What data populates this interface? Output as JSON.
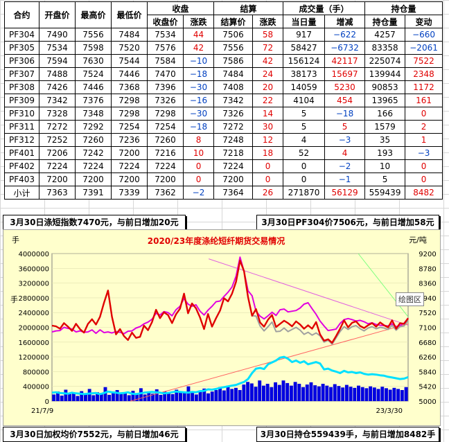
{
  "table": {
    "headers_top": [
      "合约",
      "开盘价",
      "最高价",
      "最低价",
      "收盘",
      "结算",
      "成交量（手）",
      "持仓量"
    ],
    "headers_sub": [
      "收盘价",
      "涨跌",
      "结算价",
      "涨跌",
      "当日量",
      "增减",
      "持仓量",
      "变动"
    ],
    "rows": [
      [
        "PF304",
        "7490",
        "7556",
        "7484",
        "7534",
        "44",
        "7506",
        "58",
        "917",
        "−622",
        "4257",
        "−660"
      ],
      [
        "PF305",
        "7534",
        "7598",
        "7520",
        "7576",
        "42",
        "7556",
        "72",
        "58427",
        "−6732",
        "83358",
        "−2061"
      ],
      [
        "PF306",
        "7594",
        "7630",
        "7544",
        "7584",
        "−10",
        "7586",
        "42",
        "156124",
        "42117",
        "225074",
        "7522"
      ],
      [
        "PF307",
        "7488",
        "7524",
        "7446",
        "7470",
        "−18",
        "7484",
        "24",
        "38173",
        "15697",
        "139944",
        "2348"
      ],
      [
        "PF308",
        "7426",
        "7446",
        "7368",
        "7396",
        "−30",
        "7408",
        "20",
        "14059",
        "5230",
        "90853",
        "1172"
      ],
      [
        "PF309",
        "7342",
        "7376",
        "7298",
        "7326",
        "−16",
        "7342",
        "22",
        "4104",
        "454",
        "13965",
        "161"
      ],
      [
        "PF310",
        "7328",
        "7348",
        "7298",
        "7298",
        "−30",
        "7326",
        "14",
        "5",
        "−18",
        "166",
        "0"
      ],
      [
        "PF311",
        "7272",
        "7292",
        "7254",
        "7254",
        "−18",
        "7272",
        "30",
        "5",
        "5",
        "1579",
        "2"
      ],
      [
        "PF312",
        "7252",
        "7260",
        "7236",
        "7260",
        "8",
        "7248",
        "12",
        "4",
        "−3",
        "35",
        "1"
      ],
      [
        "PF401",
        "7206",
        "7242",
        "7200",
        "7216",
        "10",
        "7218",
        "18",
        "52",
        "4",
        "193",
        "−3"
      ],
      [
        "PF402",
        "7224",
        "7224",
        "7224",
        "7224",
        "0",
        "7224",
        "0",
        "0",
        "−2",
        "10",
        "0"
      ],
      [
        "PF403",
        "7200",
        "7200",
        "7200",
        "7200",
        "0",
        "7200",
        "0",
        "0",
        "−1",
        "5",
        "0"
      ],
      [
        "小计",
        "7363",
        "7391",
        "7339",
        "7362",
        "−2",
        "7364",
        "26",
        "271870",
        "56129",
        "559439",
        "8482"
      ]
    ],
    "colors": {
      "up": "#e00000",
      "down": "#0040c0",
      "flat": "#e00000"
    }
  },
  "captions": {
    "top_left": "3月30日涤短指数7470元，与前日增加20元",
    "top_right": "3月30日PF304价7506元，与前日增加58元",
    "bottom_left": "3月30日加权均价7552元，与前日增加46元",
    "bottom_right": "3月30日持仓559439手，与前日增加8482手"
  },
  "tooltip": "绘图区",
  "chart_data": {
    "type": "line",
    "title": "2020/23年度涤纶短纤期货交易情况",
    "left_unit": "手",
    "right_unit": "元/吨",
    "left_ticks": [
      "4000000",
      "3600000",
      "3200000",
      "2800000",
      "2400000",
      "2000000",
      "1600000",
      "1200000",
      "800000",
      "400000",
      "0"
    ],
    "right_ticks": [
      "9200",
      "8780",
      "8360",
      "7940",
      "7520",
      "7100",
      "6680",
      "6260",
      "5840",
      "5420",
      "5000"
    ],
    "x_start": "21/7/9",
    "x_end": "23/3/30",
    "left_range": [
      0,
      4000000
    ],
    "right_range": [
      5000,
      9200
    ],
    "series": [
      {
        "name": "",
        "color": "#e00000",
        "axis": "right",
        "values": [
          7150,
          7130,
          7060,
          7220,
          7120,
          7000,
          7200,
          7050,
          6950,
          7200,
          7330,
          7180,
          7400,
          7800,
          8150,
          7400,
          6900,
          7050,
          6850,
          6740,
          6950,
          6800,
          6830,
          7150,
          7020,
          7250,
          7600,
          7360,
          7530,
          7450,
          7220,
          7470,
          7630,
          8060,
          7500,
          7780,
          7640,
          7380,
          7050,
          7480,
          7120,
          7360,
          7580,
          7930,
          7840,
          8060,
          8400,
          9000,
          8700,
          7960,
          7430,
          7620,
          7240,
          7120,
          7320,
          7450,
          7110,
          7200,
          7290,
          7220,
          7130,
          7270,
          7180,
          7060,
          7160,
          7060,
          7250,
          6900,
          6720,
          6760,
          6660,
          6850,
          7060,
          7300,
          7100,
          7230,
          7270,
          7140,
          7080,
          7160,
          7220,
          7120,
          7240,
          7160,
          7100,
          7300,
          7060,
          7220,
          7200,
          7360
        ]
      },
      {
        "name": "",
        "color": "#e000e0",
        "axis": "right",
        "values": [
          6970,
          7000,
          7010,
          7100,
          7070,
          7050,
          6970,
          7000,
          6960,
          6970,
          7030,
          6930,
          7030,
          6950,
          6970,
          6940,
          6980,
          6960,
          6920,
          6990,
          7000,
          7080,
          7120,
          7200,
          7250,
          7330,
          7500,
          7450,
          7550,
          7520,
          7430,
          7600,
          7700,
          7920,
          7760,
          7700,
          7740,
          7560,
          7450,
          7590,
          7700,
          7830,
          7850,
          7980,
          8100,
          8250,
          8560,
          9100,
          8700,
          8140,
          8000,
          7560,
          7420,
          7340,
          7430,
          7530,
          7440,
          7600,
          7620,
          7540,
          7560,
          7580,
          7650,
          7760,
          7800,
          7630,
          7470,
          7280,
          7140,
          7010,
          7030,
          7050,
          7210,
          7320,
          7350,
          7320,
          7280,
          7300,
          7260,
          7200,
          7230,
          7180,
          7160,
          7150,
          7140,
          7200,
          7120,
          7150,
          7220,
          7360
        ]
      },
      {
        "name": "",
        "color": "#a0a0a0",
        "axis": "right",
        "values": [
          7150,
          7130,
          7060,
          7220,
          7120,
          7000,
          7200,
          7050,
          6950,
          7200,
          7330,
          7180,
          7400,
          7800,
          8150,
          7400,
          6900,
          7050,
          6850,
          6740,
          6950,
          6800,
          6830,
          7150,
          7020,
          7250,
          7600,
          7360,
          7530,
          7450,
          7220,
          7470,
          7630,
          8060,
          7500,
          7780,
          7640,
          7380,
          7050,
          7480,
          7120,
          7360,
          7580,
          7930,
          7840,
          8060,
          8400,
          9000,
          8700,
          7960,
          7430,
          7420,
          7140,
          7000,
          7120,
          7250,
          6980,
          6990,
          7080,
          6980,
          7040,
          7100,
          7020,
          6900,
          6960,
          6880,
          6940,
          6860,
          6680,
          6740,
          6620,
          6800,
          6980,
          7120,
          7040,
          7120,
          7150,
          7060,
          7000,
          7080,
          7120,
          7060,
          7100,
          7080,
          7040,
          7160,
          7020,
          7120,
          7140,
          7300
        ]
      },
      {
        "name": "",
        "color": "#00e0ff",
        "axis": "left",
        "values": [
          230000,
          240000,
          220000,
          210000,
          200000,
          230000,
          210000,
          200000,
          190000,
          200000,
          210000,
          220000,
          190000,
          220000,
          260000,
          240000,
          230000,
          210000,
          220000,
          240000,
          200000,
          190000,
          210000,
          230000,
          240000,
          250000,
          240000,
          230000,
          210000,
          220000,
          240000,
          260000,
          250000,
          240000,
          230000,
          250000,
          240000,
          270000,
          280000,
          320000,
          310000,
          330000,
          360000,
          380000,
          400000,
          420000,
          440000,
          480000,
          520000,
          600000,
          760000,
          880000,
          900000,
          870000,
          1000000,
          1050000,
          1100000,
          1180000,
          1200000,
          1150000,
          1060000,
          1100000,
          1040000,
          1080000,
          1000000,
          1030000,
          1060000,
          1020000,
          860000,
          880000,
          830000,
          800000,
          760000,
          820000,
          780000,
          790000,
          760000,
          780000,
          740000,
          720000,
          730000,
          720000,
          700000,
          690000,
          660000,
          640000,
          620000,
          600000,
          610000,
          650000
        ]
      }
    ],
    "volume_bars": {
      "color": "#0000e0",
      "axis": "left",
      "values": [
        180000,
        260000,
        150000,
        310000,
        190000,
        220000,
        140000,
        270000,
        200000,
        330000,
        160000,
        240000,
        210000,
        380000,
        170000,
        250000,
        300000,
        190000,
        230000,
        160000,
        280000,
        210000,
        350000,
        180000,
        240000,
        200000,
        320000,
        170000,
        260000,
        230000,
        190000,
        310000,
        270000,
        220000,
        400000,
        250000,
        180000,
        290000,
        340000,
        210000,
        260000,
        300000,
        380000,
        290000,
        420000,
        330000,
        360000,
        300000,
        450000,
        520000,
        480000,
        390000,
        560000,
        420000,
        470000,
        380000,
        510000,
        440000,
        560000,
        490000,
        420000,
        520000,
        470000,
        380000,
        450000,
        510000,
        430000,
        400000,
        470000,
        420000,
        380000,
        460000,
        410000,
        370000,
        440000,
        390000,
        360000,
        420000,
        380000,
        350000,
        400000,
        370000,
        330000,
        390000,
        350000,
        310000,
        360000,
        330000,
        300000,
        380000
      ]
    },
    "trend_lines": [
      {
        "color": "#e060e0",
        "axis": "right",
        "from": [
          0.44,
          9050
        ],
        "to": [
          1.0,
          7160
        ]
      },
      {
        "color": "#ff6060",
        "axis": "right",
        "from": [
          0.22,
          5000
        ],
        "to": [
          1.0,
          7200
        ]
      },
      {
        "color": "#80ff80",
        "axis": "right",
        "from": [
          0.86,
          9200
        ],
        "to": [
          1.0,
          7400
        ]
      }
    ]
  }
}
